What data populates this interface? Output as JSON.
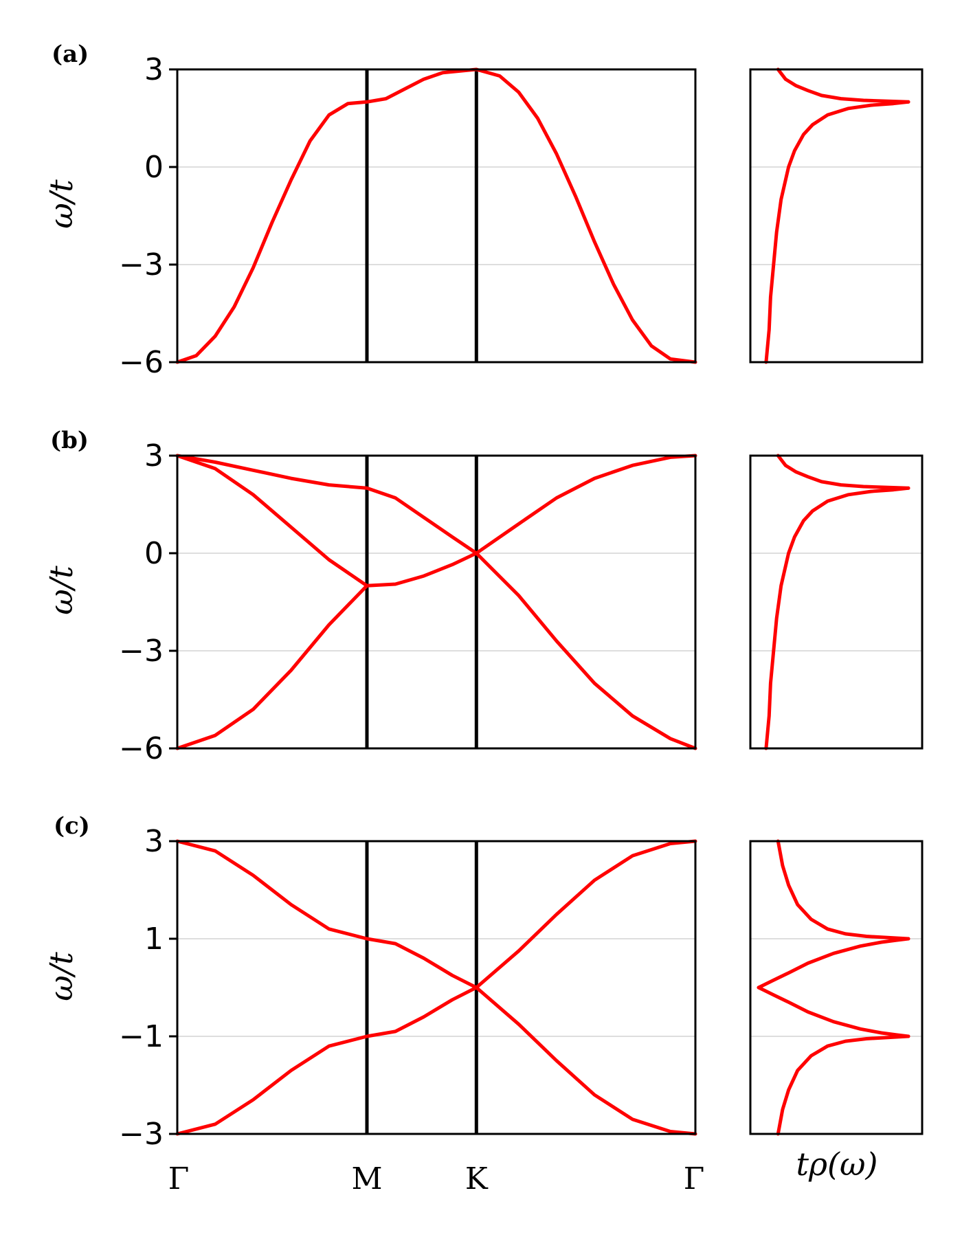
{
  "figure": {
    "colors": {
      "curve": "#ff0000",
      "grid": "#d3d3d3",
      "kpath_line": "#000000"
    },
    "dos_xlabel": "tρ(ω)"
  },
  "chart_data": [
    {
      "type": "line",
      "panel_label": "(a)",
      "ylabel": "ω/t",
      "ylim": [
        -6,
        3
      ],
      "yticks": [
        3,
        0,
        -3,
        -6
      ],
      "ytick_labels": [
        "3",
        "0",
        "−3",
        "−6"
      ],
      "grid": "horizontal",
      "kpath": {
        "labels": [
          "Γ",
          "M",
          "K",
          "Γ"
        ],
        "positions": [
          0,
          1,
          1.5773,
          2.732
        ]
      },
      "series": [
        {
          "x": [
            0,
            0.1,
            0.2,
            0.3,
            0.4,
            0.5,
            0.6,
            0.7,
            0.8,
            0.9,
            1.0,
            1.1,
            1.2,
            1.3,
            1.4,
            1.5773,
            1.7,
            1.8,
            1.9,
            2.0,
            2.1,
            2.2,
            2.3,
            2.4,
            2.5,
            2.6,
            2.732
          ],
          "y": [
            -6,
            -5.8,
            -5.2,
            -4.3,
            -3.1,
            -1.7,
            -0.4,
            0.8,
            1.6,
            1.95,
            2.0,
            2.1,
            2.4,
            2.7,
            2.9,
            3.0,
            2.8,
            2.3,
            1.5,
            0.4,
            -0.9,
            -2.3,
            -3.6,
            -4.7,
            -5.5,
            -5.9,
            -6
          ]
        }
      ],
      "dos": {
        "xlabel": "tρ(ω)",
        "curves": [
          {
            "omega": [
              -6,
              -5.5,
              -5,
              -4,
              -3,
              -2,
              -1,
              0,
              0.5,
              1.0,
              1.3,
              1.6,
              1.8,
              1.9,
              1.95,
              2.0
            ],
            "rho": [
              0.05,
              0.06,
              0.07,
              0.08,
              0.1,
              0.12,
              0.15,
              0.2,
              0.24,
              0.3,
              0.36,
              0.46,
              0.6,
              0.75,
              0.9,
              1.0
            ]
          },
          {
            "omega": [
              2.0,
              2.05,
              2.1,
              2.2,
              2.35,
              2.5,
              2.7,
              3.0
            ],
            "rho": [
              1.0,
              0.7,
              0.55,
              0.42,
              0.33,
              0.25,
              0.18,
              0.13
            ]
          }
        ]
      }
    },
    {
      "type": "line",
      "panel_label": "(b)",
      "ylabel": "ω/t",
      "ylim": [
        -6,
        3
      ],
      "yticks": [
        3,
        0,
        -3,
        -6
      ],
      "ytick_labels": [
        "3",
        "0",
        "−3",
        "−6"
      ],
      "grid": "horizontal",
      "kpath": {
        "labels": [
          "Γ",
          "M",
          "K",
          "Γ"
        ],
        "positions": [
          0,
          1,
          1.5773,
          2.732
        ]
      },
      "series": [
        {
          "x": [
            0,
            0.2,
            0.4,
            0.6,
            0.8,
            1.0,
            1.15,
            1.3,
            1.45,
            1.5773,
            1.8,
            2.0,
            2.2,
            2.4,
            2.6,
            2.732
          ],
          "y": [
            3,
            2.8,
            2.55,
            2.3,
            2.1,
            2.0,
            1.7,
            1.1,
            0.5,
            0,
            0.9,
            1.7,
            2.3,
            2.7,
            2.95,
            3
          ]
        },
        {
          "x": [
            0,
            0.2,
            0.4,
            0.6,
            0.8,
            1.0,
            1.15,
            1.3,
            1.45,
            1.5773,
            1.8,
            2.0,
            2.2,
            2.4,
            2.6,
            2.732
          ],
          "y": [
            3,
            2.6,
            1.8,
            0.8,
            -0.2,
            -1.0,
            -0.95,
            -0.7,
            -0.35,
            0,
            -1.3,
            -2.7,
            -4.0,
            -5.0,
            -5.7,
            -6
          ]
        },
        {
          "x": [
            0,
            0.2,
            0.4,
            0.6,
            0.8,
            1.0
          ],
          "y": [
            -6,
            -5.6,
            -4.8,
            -3.6,
            -2.2,
            -1.0
          ]
        }
      ],
      "dos": {
        "xlabel": "tρ(ω)",
        "curves": [
          {
            "omega": [
              -6,
              -5.5,
              -5,
              -4,
              -3,
              -2,
              -1,
              0,
              0.5,
              1.0,
              1.3,
              1.6,
              1.8,
              1.9,
              1.95,
              2.0
            ],
            "rho": [
              0.05,
              0.06,
              0.07,
              0.08,
              0.1,
              0.12,
              0.15,
              0.2,
              0.24,
              0.3,
              0.36,
              0.46,
              0.6,
              0.75,
              0.9,
              1.0
            ]
          },
          {
            "omega": [
              2.0,
              2.05,
              2.1,
              2.2,
              2.35,
              2.5,
              2.7,
              3.0
            ],
            "rho": [
              1.0,
              0.7,
              0.55,
              0.42,
              0.33,
              0.25,
              0.18,
              0.13
            ]
          }
        ]
      }
    },
    {
      "type": "line",
      "panel_label": "(c)",
      "ylabel": "ω/t",
      "xlabel_ticks": [
        "Γ",
        "M",
        "K",
        "Γ"
      ],
      "ylim": [
        -3,
        3
      ],
      "yticks": [
        3,
        1,
        -1,
        -3
      ],
      "ytick_labels": [
        "3",
        "1",
        "−1",
        "−3"
      ],
      "grid": "horizontal",
      "kpath": {
        "labels": [
          "Γ",
          "M",
          "K",
          "Γ"
        ],
        "positions": [
          0,
          1,
          1.5773,
          2.732
        ]
      },
      "series": [
        {
          "x": [
            0,
            0.2,
            0.4,
            0.6,
            0.8,
            1.0,
            1.15,
            1.3,
            1.45,
            1.5773,
            1.8,
            2.0,
            2.2,
            2.4,
            2.6,
            2.732
          ],
          "y": [
            3,
            2.8,
            2.3,
            1.7,
            1.2,
            1.0,
            0.9,
            0.6,
            0.25,
            0,
            0.75,
            1.5,
            2.2,
            2.7,
            2.95,
            3
          ]
        },
        {
          "x": [
            0,
            0.2,
            0.4,
            0.6,
            0.8,
            1.0,
            1.15,
            1.3,
            1.45,
            1.5773,
            1.8,
            2.0,
            2.2,
            2.4,
            2.6,
            2.732
          ],
          "y": [
            -3,
            -2.8,
            -2.3,
            -1.7,
            -1.2,
            -1.0,
            -0.9,
            -0.6,
            -0.25,
            0,
            -0.75,
            -1.5,
            -2.2,
            -2.7,
            -2.95,
            -3
          ]
        }
      ],
      "dos": {
        "xlabel": "tρ(ω)",
        "curves": [
          {
            "omega": [
              0,
              0.15,
              0.3,
              0.5,
              0.7,
              0.85,
              0.93,
              0.97,
              1.0
            ],
            "rho": [
              0.0,
              0.1,
              0.2,
              0.33,
              0.5,
              0.68,
              0.82,
              0.92,
              1.0
            ]
          },
          {
            "omega": [
              1.0,
              1.05,
              1.1,
              1.2,
              1.4,
              1.7,
              2.1,
              2.5,
              3.0
            ],
            "rho": [
              1.0,
              0.72,
              0.58,
              0.46,
              0.35,
              0.26,
              0.2,
              0.16,
              0.13
            ]
          },
          {
            "omega": [
              0,
              -0.15,
              -0.3,
              -0.5,
              -0.7,
              -0.85,
              -0.93,
              -0.97,
              -1.0
            ],
            "rho": [
              0.0,
              0.1,
              0.2,
              0.33,
              0.5,
              0.68,
              0.82,
              0.92,
              1.0
            ]
          },
          {
            "omega": [
              -1.0,
              -1.05,
              -1.1,
              -1.2,
              -1.4,
              -1.7,
              -2.1,
              -2.5,
              -3.0
            ],
            "rho": [
              1.0,
              0.72,
              0.58,
              0.46,
              0.35,
              0.26,
              0.2,
              0.16,
              0.13
            ]
          }
        ]
      }
    }
  ]
}
